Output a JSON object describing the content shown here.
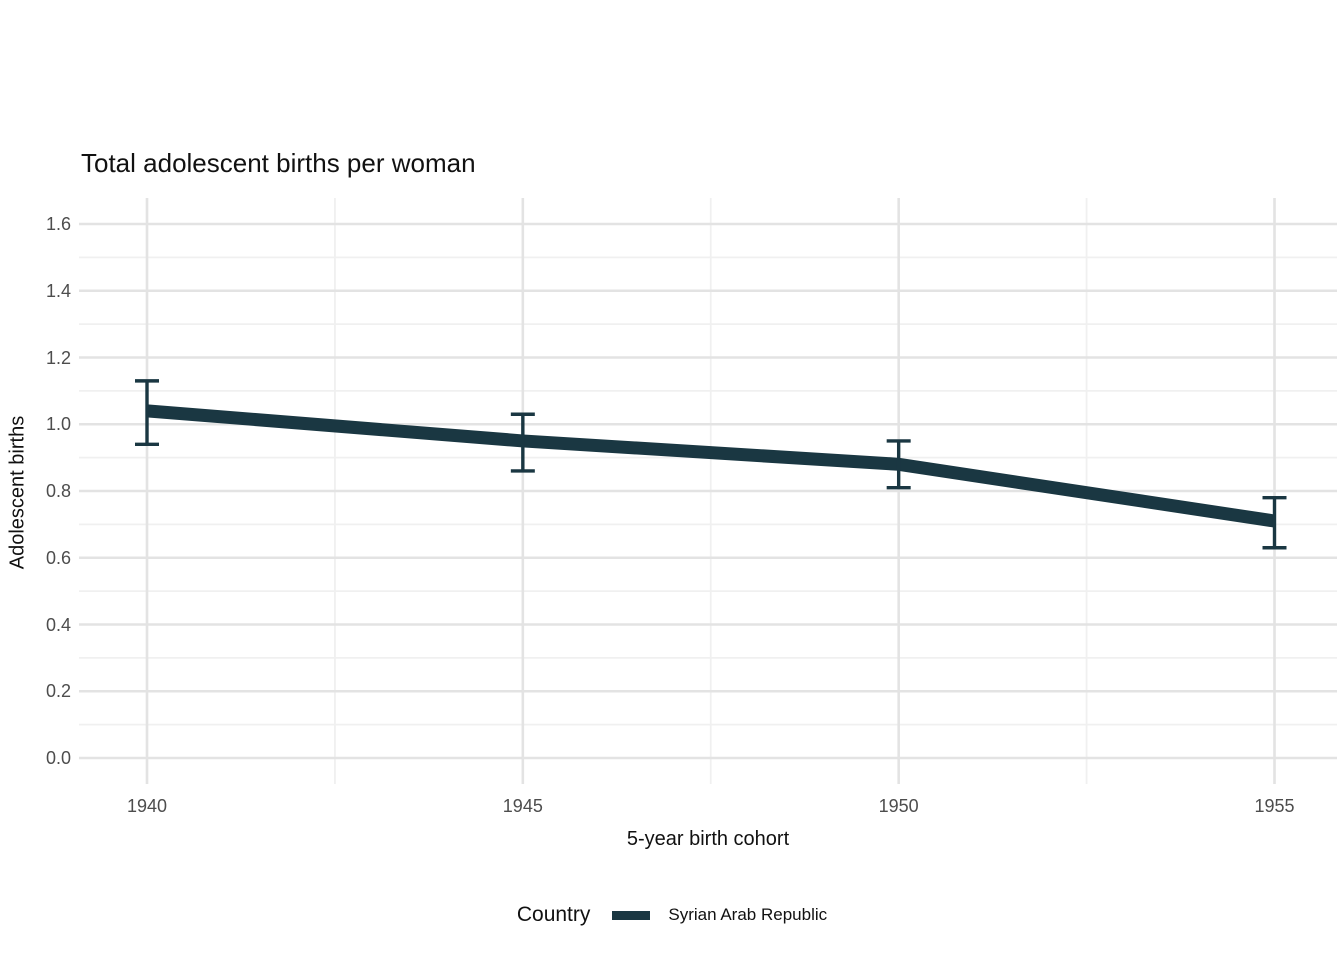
{
  "chart_data": {
    "type": "line",
    "title": "Total adolescent births per woman",
    "xlabel": "5-year birth cohort",
    "ylabel": "Adolescent births",
    "x": [
      1940,
      1945,
      1950,
      1955
    ],
    "xticklabels": [
      "1940",
      "1945",
      "1950",
      "1955"
    ],
    "yticks": [
      0.0,
      0.2,
      0.4,
      0.6,
      0.8,
      1.0,
      1.2,
      1.4,
      1.6
    ],
    "yticklabels": [
      "0.0",
      "0.2",
      "0.4",
      "0.6",
      "0.8",
      "1.0",
      "1.2",
      "1.4",
      "1.6"
    ],
    "ylim": [
      0,
      1.6
    ],
    "xlim": [
      1940,
      1955
    ],
    "grid": "major+minor",
    "legend_position": "bottom",
    "legend": {
      "title": "Country",
      "entries": [
        {
          "label": "Syrian Arab Republic",
          "color": "#1a3742"
        }
      ]
    },
    "series": [
      {
        "name": "Syrian Arab Republic",
        "values": [
          1.04,
          0.95,
          0.88,
          0.71
        ],
        "ci_low": [
          0.94,
          0.86,
          0.81,
          0.63
        ],
        "ci_high": [
          1.13,
          1.03,
          0.95,
          0.78
        ],
        "color": "#1a3742"
      }
    ],
    "colors": {
      "line": "#1a3742",
      "grid_major": "#e3e3e3",
      "grid_minor": "#f0f0f0",
      "tick_label": "#4d4d4d",
      "text": "#111111",
      "background": "#ffffff"
    }
  }
}
